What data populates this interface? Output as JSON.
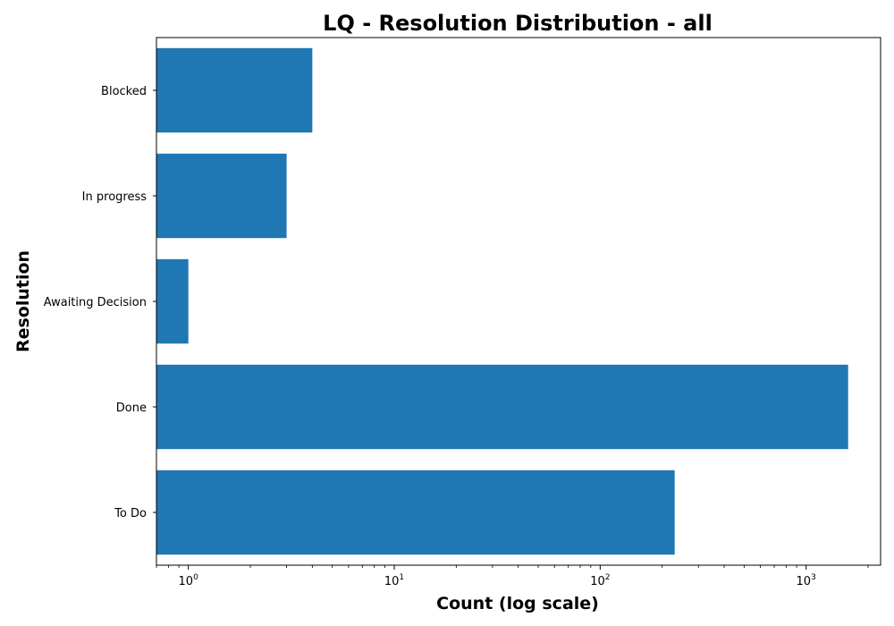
{
  "chart_data": {
    "type": "bar",
    "orientation": "horizontal",
    "title": "LQ - Resolution Distribution - all",
    "xlabel": "Count (log scale)",
    "ylabel": "Resolution",
    "xscale": "log",
    "xlim": [
      0.7,
      2300
    ],
    "categories": [
      "To Do",
      "Done",
      "Awaiting Decision",
      "In progress",
      "Blocked"
    ],
    "values": [
      230,
      1600,
      1,
      3,
      4
    ],
    "bar_color": "#1f77b4",
    "x_ticks": [
      {
        "base": "10",
        "exp": "0",
        "value": 1
      },
      {
        "base": "10",
        "exp": "1",
        "value": 10
      },
      {
        "base": "10",
        "exp": "2",
        "value": 100
      },
      {
        "base": "10",
        "exp": "3",
        "value": 1000
      }
    ],
    "grid": false,
    "legend": "none"
  }
}
